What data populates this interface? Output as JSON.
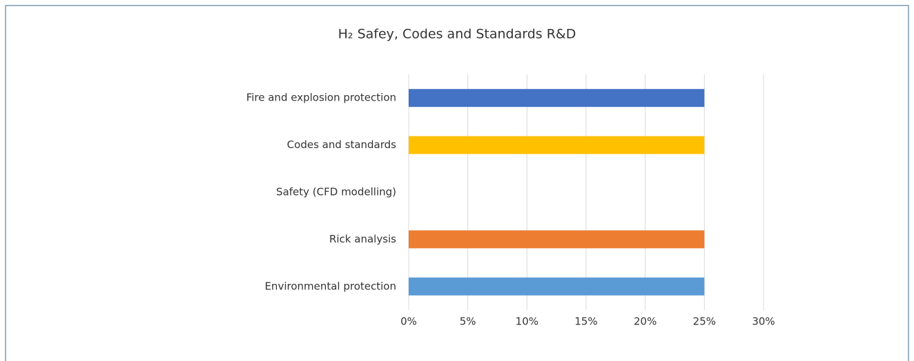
{
  "chart_data": {
    "type": "barh",
    "title": "H₂ Safey, Codes and Standards R&D",
    "categories": [
      "Fire and explosion protection",
      "Codes and standards",
      "Safety (CFD modelling)",
      "Rick analysis",
      "Environmental protection"
    ],
    "values": [
      25,
      25,
      0,
      25,
      25
    ],
    "colors": [
      "#4472c4",
      "#ffc000",
      null,
      "#ed7d31",
      "#5b9bd5"
    ],
    "xlim": [
      0,
      30
    ],
    "xticks": [
      {
        "value": 0,
        "label": "0%"
      },
      {
        "value": 5,
        "label": "5%"
      },
      {
        "value": 10,
        "label": "10%"
      },
      {
        "value": 15,
        "label": "15%"
      },
      {
        "value": 20,
        "label": "20%"
      },
      {
        "value": 25,
        "label": "25%"
      },
      {
        "value": 30,
        "label": "30%"
      }
    ],
    "grid": true
  }
}
